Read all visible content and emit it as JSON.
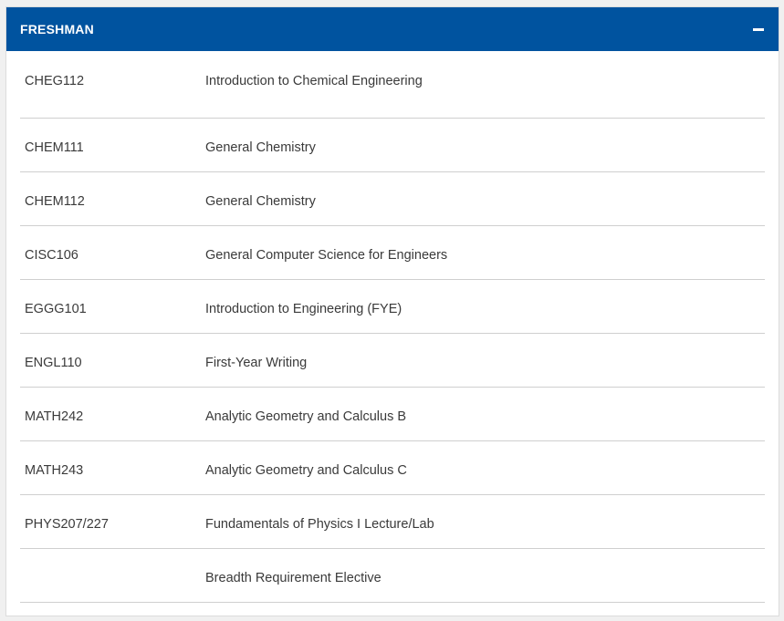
{
  "section": {
    "title": "FRESHMAN",
    "expanded": true,
    "header_color": "#00539f"
  },
  "courses": [
    {
      "code": "CHEG112",
      "name": "Introduction to Chemical Engineering"
    },
    {
      "code": "CHEM111",
      "name": "General Chemistry"
    },
    {
      "code": "CHEM112",
      "name": "General Chemistry"
    },
    {
      "code": "CISC106",
      "name": "General Computer Science for Engineers"
    },
    {
      "code": "EGGG101",
      "name": "Introduction to Engineering (FYE)"
    },
    {
      "code": "ENGL110",
      "name": "First-Year Writing"
    },
    {
      "code": "MATH242",
      "name": "Analytic Geometry and Calculus B"
    },
    {
      "code": "MATH243",
      "name": "Analytic Geometry and Calculus C"
    },
    {
      "code": "PHYS207/227",
      "name": "Fundamentals of Physics I Lecture/Lab"
    },
    {
      "code": "",
      "name": "Breadth Requirement Elective"
    }
  ]
}
